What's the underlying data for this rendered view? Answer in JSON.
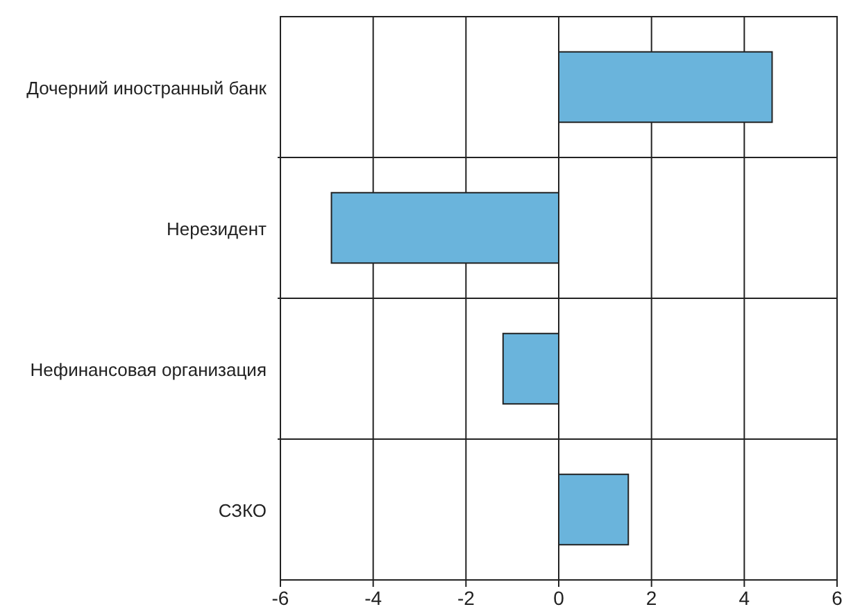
{
  "chart_data": {
    "type": "bar",
    "orientation": "horizontal",
    "categories": [
      "Дочерний иностранный банк",
      "Нерезидент",
      "Нефинансовая организация",
      "СЗКО"
    ],
    "values": [
      4.6,
      -4.9,
      -1.2,
      1.5
    ],
    "color": "#6ab4dc",
    "xlim": [
      -6,
      6
    ],
    "xticks": [
      -6,
      -4,
      -2,
      0,
      2,
      4,
      6
    ],
    "grid": true
  }
}
